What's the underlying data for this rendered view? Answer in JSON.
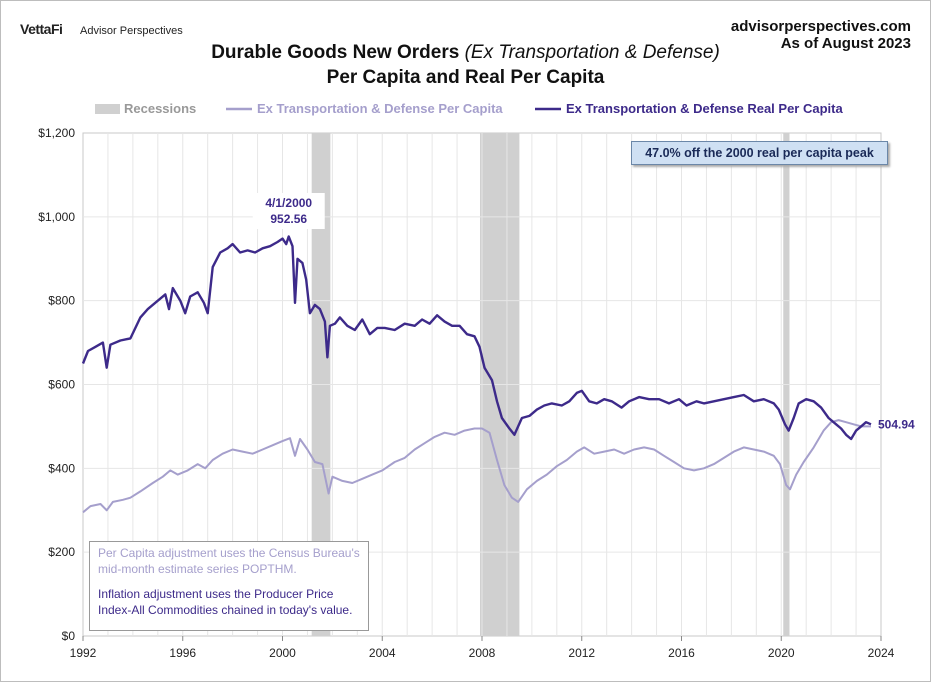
{
  "header": {
    "brand": "VettaFi",
    "brand_sub": "Advisor Perspectives",
    "site": "advisorperspectives.com",
    "as_of": "As of August 2023"
  },
  "colors": {
    "recession": "#d0d0d0",
    "nominal": "#a59fcc",
    "real": "#3d2a8a",
    "grid": "#e6e6e6"
  },
  "chart_data": {
    "type": "line",
    "title_main": "Durable Goods New Orders ",
    "title_italic": "(Ex Transportation & Defense)",
    "subtitle": "Per Capita and Real Per Capita",
    "legend": {
      "recessions": "Recessions",
      "nominal": "Ex Transportation & Defense Per Capita",
      "real": "Ex Transportation & Defense Real Per Capita"
    },
    "xlim": [
      1992,
      2024
    ],
    "ylim": [
      0,
      1200
    ],
    "x_ticks": [
      1992,
      1996,
      2000,
      2004,
      2008,
      2012,
      2016,
      2020,
      2024
    ],
    "y_ticks": [
      0,
      200,
      400,
      600,
      800,
      1000,
      1200
    ],
    "y_tick_labels": [
      "$0",
      "$200",
      "$400",
      "$600",
      "$800",
      "$1,000",
      "$1,200"
    ],
    "recessions": [
      [
        2001.17,
        2001.92
      ],
      [
        2007.92,
        2009.5
      ],
      [
        2020.08,
        2020.33
      ]
    ],
    "series": [
      {
        "name": "Ex Transportation & Defense Real Per Capita",
        "points": [
          [
            1992.0,
            650
          ],
          [
            1992.2,
            680
          ],
          [
            1992.5,
            690
          ],
          [
            1992.8,
            700
          ],
          [
            1992.95,
            640
          ],
          [
            1993.1,
            695
          ],
          [
            1993.5,
            705
          ],
          [
            1993.9,
            710
          ],
          [
            1994.3,
            760
          ],
          [
            1994.6,
            780
          ],
          [
            1995.0,
            800
          ],
          [
            1995.3,
            815
          ],
          [
            1995.45,
            780
          ],
          [
            1995.6,
            830
          ],
          [
            1995.9,
            800
          ],
          [
            1996.1,
            770
          ],
          [
            1996.3,
            810
          ],
          [
            1996.6,
            820
          ],
          [
            1996.85,
            795
          ],
          [
            1997.0,
            770
          ],
          [
            1997.2,
            880
          ],
          [
            1997.5,
            915
          ],
          [
            1997.8,
            925
          ],
          [
            1998.0,
            935
          ],
          [
            1998.3,
            915
          ],
          [
            1998.6,
            920
          ],
          [
            1998.9,
            915
          ],
          [
            1999.2,
            925
          ],
          [
            1999.5,
            930
          ],
          [
            1999.8,
            940
          ],
          [
            2000.0,
            948
          ],
          [
            2000.15,
            935
          ],
          [
            2000.25,
            953
          ],
          [
            2000.4,
            930
          ],
          [
            2000.5,
            795
          ],
          [
            2000.6,
            900
          ],
          [
            2000.8,
            890
          ],
          [
            2000.95,
            850
          ],
          [
            2001.1,
            770
          ],
          [
            2001.3,
            790
          ],
          [
            2001.5,
            780
          ],
          [
            2001.7,
            750
          ],
          [
            2001.8,
            665
          ],
          [
            2001.9,
            740
          ],
          [
            2002.1,
            745
          ],
          [
            2002.3,
            760
          ],
          [
            2002.6,
            740
          ],
          [
            2002.9,
            730
          ],
          [
            2003.2,
            755
          ],
          [
            2003.5,
            720
          ],
          [
            2003.8,
            735
          ],
          [
            2004.1,
            735
          ],
          [
            2004.5,
            730
          ],
          [
            2004.9,
            745
          ],
          [
            2005.3,
            740
          ],
          [
            2005.6,
            755
          ],
          [
            2005.9,
            745
          ],
          [
            2006.2,
            765
          ],
          [
            2006.5,
            750
          ],
          [
            2006.8,
            740
          ],
          [
            2007.1,
            740
          ],
          [
            2007.4,
            720
          ],
          [
            2007.7,
            715
          ],
          [
            2007.9,
            690
          ],
          [
            2008.1,
            640
          ],
          [
            2008.4,
            610
          ],
          [
            2008.6,
            560
          ],
          [
            2008.8,
            520
          ],
          [
            2009.1,
            495
          ],
          [
            2009.3,
            480
          ],
          [
            2009.6,
            520
          ],
          [
            2009.9,
            525
          ],
          [
            2010.2,
            540
          ],
          [
            2010.5,
            550
          ],
          [
            2010.8,
            555
          ],
          [
            2011.2,
            550
          ],
          [
            2011.5,
            560
          ],
          [
            2011.8,
            580
          ],
          [
            2012.0,
            585
          ],
          [
            2012.3,
            560
          ],
          [
            2012.6,
            555
          ],
          [
            2012.9,
            565
          ],
          [
            2013.2,
            560
          ],
          [
            2013.6,
            545
          ],
          [
            2013.9,
            560
          ],
          [
            2014.3,
            570
          ],
          [
            2014.7,
            565
          ],
          [
            2015.1,
            565
          ],
          [
            2015.5,
            555
          ],
          [
            2015.9,
            565
          ],
          [
            2016.2,
            550
          ],
          [
            2016.6,
            560
          ],
          [
            2016.9,
            555
          ],
          [
            2017.3,
            560
          ],
          [
            2017.7,
            565
          ],
          [
            2018.1,
            570
          ],
          [
            2018.5,
            575
          ],
          [
            2018.9,
            560
          ],
          [
            2019.3,
            565
          ],
          [
            2019.7,
            555
          ],
          [
            2019.9,
            540
          ],
          [
            2020.15,
            505
          ],
          [
            2020.3,
            490
          ],
          [
            2020.5,
            520
          ],
          [
            2020.7,
            555
          ],
          [
            2021.0,
            565
          ],
          [
            2021.3,
            560
          ],
          [
            2021.6,
            545
          ],
          [
            2021.9,
            520
          ],
          [
            2022.2,
            505
          ],
          [
            2022.4,
            495
          ],
          [
            2022.6,
            480
          ],
          [
            2022.8,
            470
          ],
          [
            2023.0,
            490
          ],
          [
            2023.2,
            500
          ],
          [
            2023.4,
            510
          ],
          [
            2023.6,
            505
          ]
        ]
      },
      {
        "name": "Ex Transportation & Defense Per Capita",
        "points": [
          [
            1992.0,
            295
          ],
          [
            1992.3,
            310
          ],
          [
            1992.7,
            315
          ],
          [
            1992.95,
            300
          ],
          [
            1993.2,
            320
          ],
          [
            1993.6,
            325
          ],
          [
            1993.9,
            330
          ],
          [
            1994.3,
            345
          ],
          [
            1994.8,
            365
          ],
          [
            1995.2,
            380
          ],
          [
            1995.5,
            395
          ],
          [
            1995.8,
            385
          ],
          [
            1996.2,
            395
          ],
          [
            1996.6,
            410
          ],
          [
            1996.9,
            400
          ],
          [
            1997.2,
            420
          ],
          [
            1997.6,
            435
          ],
          [
            1998.0,
            445
          ],
          [
            1998.4,
            440
          ],
          [
            1998.8,
            435
          ],
          [
            1999.2,
            445
          ],
          [
            1999.6,
            455
          ],
          [
            2000.0,
            465
          ],
          [
            2000.3,
            472
          ],
          [
            2000.5,
            430
          ],
          [
            2000.7,
            470
          ],
          [
            2001.0,
            445
          ],
          [
            2001.3,
            415
          ],
          [
            2001.6,
            410
          ],
          [
            2001.85,
            340
          ],
          [
            2002.0,
            380
          ],
          [
            2002.4,
            370
          ],
          [
            2002.8,
            365
          ],
          [
            2003.2,
            375
          ],
          [
            2003.6,
            385
          ],
          [
            2004.0,
            395
          ],
          [
            2004.5,
            415
          ],
          [
            2004.9,
            425
          ],
          [
            2005.3,
            445
          ],
          [
            2005.7,
            460
          ],
          [
            2006.1,
            475
          ],
          [
            2006.5,
            485
          ],
          [
            2006.9,
            480
          ],
          [
            2007.3,
            490
          ],
          [
            2007.7,
            495
          ],
          [
            2008.0,
            495
          ],
          [
            2008.3,
            485
          ],
          [
            2008.6,
            420
          ],
          [
            2008.9,
            360
          ],
          [
            2009.2,
            330
          ],
          [
            2009.45,
            320
          ],
          [
            2009.8,
            350
          ],
          [
            2010.2,
            370
          ],
          [
            2010.6,
            385
          ],
          [
            2011.0,
            405
          ],
          [
            2011.4,
            420
          ],
          [
            2011.8,
            440
          ],
          [
            2012.1,
            450
          ],
          [
            2012.5,
            435
          ],
          [
            2012.9,
            440
          ],
          [
            2013.3,
            445
          ],
          [
            2013.7,
            435
          ],
          [
            2014.1,
            445
          ],
          [
            2014.5,
            450
          ],
          [
            2014.9,
            445
          ],
          [
            2015.3,
            430
          ],
          [
            2015.7,
            415
          ],
          [
            2016.1,
            400
          ],
          [
            2016.5,
            395
          ],
          [
            2016.9,
            400
          ],
          [
            2017.3,
            410
          ],
          [
            2017.7,
            425
          ],
          [
            2018.1,
            440
          ],
          [
            2018.5,
            450
          ],
          [
            2018.9,
            445
          ],
          [
            2019.3,
            440
          ],
          [
            2019.7,
            430
          ],
          [
            2019.95,
            410
          ],
          [
            2020.2,
            360
          ],
          [
            2020.35,
            350
          ],
          [
            2020.6,
            385
          ],
          [
            2020.9,
            415
          ],
          [
            2021.3,
            450
          ],
          [
            2021.7,
            490
          ],
          [
            2022.0,
            510
          ],
          [
            2022.3,
            515
          ],
          [
            2022.6,
            510
          ],
          [
            2022.9,
            505
          ],
          [
            2023.2,
            500
          ],
          [
            2023.6,
            500
          ]
        ]
      }
    ],
    "annotations": {
      "peak_date": "4/1/2000",
      "peak_value": "952.56",
      "end_value": "504.94",
      "peak_off": "47.0% off the 2000 real per capita peak"
    },
    "notes": {
      "line1": "Per Capita adjustment uses the Census Bureau's",
      "line2": "mid-month estimate series POPTHM.",
      "line3": "Inflation adjustment uses the Producer Price",
      "line4": "Index-All Commodities chained in today's value."
    }
  }
}
